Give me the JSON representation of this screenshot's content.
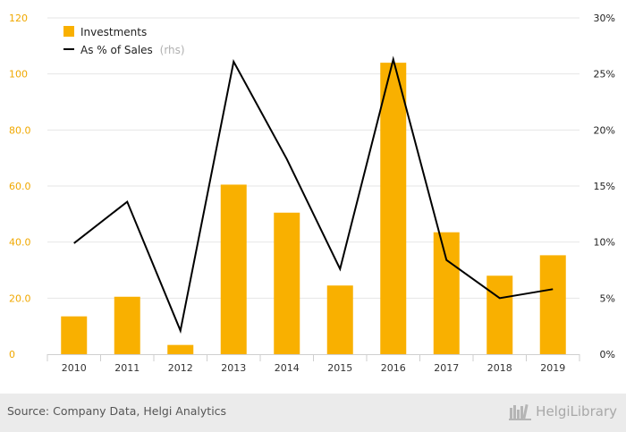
{
  "chart_data": {
    "type": "bar+line",
    "categories": [
      "2010",
      "2011",
      "2012",
      "2013",
      "2014",
      "2015",
      "2016",
      "2017",
      "2018",
      "2019"
    ],
    "series": [
      {
        "name": "Investments",
        "axis": "left",
        "type": "bar",
        "color": "#f9b000",
        "values": [
          13.5,
          20.5,
          3.3,
          60.5,
          50.5,
          24.5,
          104,
          43.5,
          28,
          35.3
        ]
      },
      {
        "name": "As % of Sales",
        "name_suffix": "(rhs)",
        "axis": "right",
        "type": "line",
        "color": "#000000",
        "values": [
          9.9,
          13.6,
          2.1,
          26.1,
          17.4,
          7.6,
          26.3,
          8.4,
          5.0,
          5.8
        ]
      }
    ],
    "left_axis": {
      "min": 0,
      "max": 120,
      "ticks": [
        0,
        20,
        40,
        60,
        80,
        100,
        120
      ],
      "tick_labels": [
        "0",
        "20.0",
        "40.0",
        "60.0",
        "80.0",
        "100",
        "120"
      ]
    },
    "right_axis": {
      "min": 0,
      "max": 30,
      "ticks": [
        0,
        5,
        10,
        15,
        20,
        25,
        30
      ],
      "tick_labels": [
        "0%",
        "5%",
        "10%",
        "15%",
        "20%",
        "25%",
        "30%"
      ]
    },
    "grid": true,
    "legend_placement": "top-left"
  },
  "footer": {
    "source": "Source: Company Data, Helgi Analytics",
    "brand": "HelgiLibrary",
    "brand_icon": "library-books-icon"
  }
}
